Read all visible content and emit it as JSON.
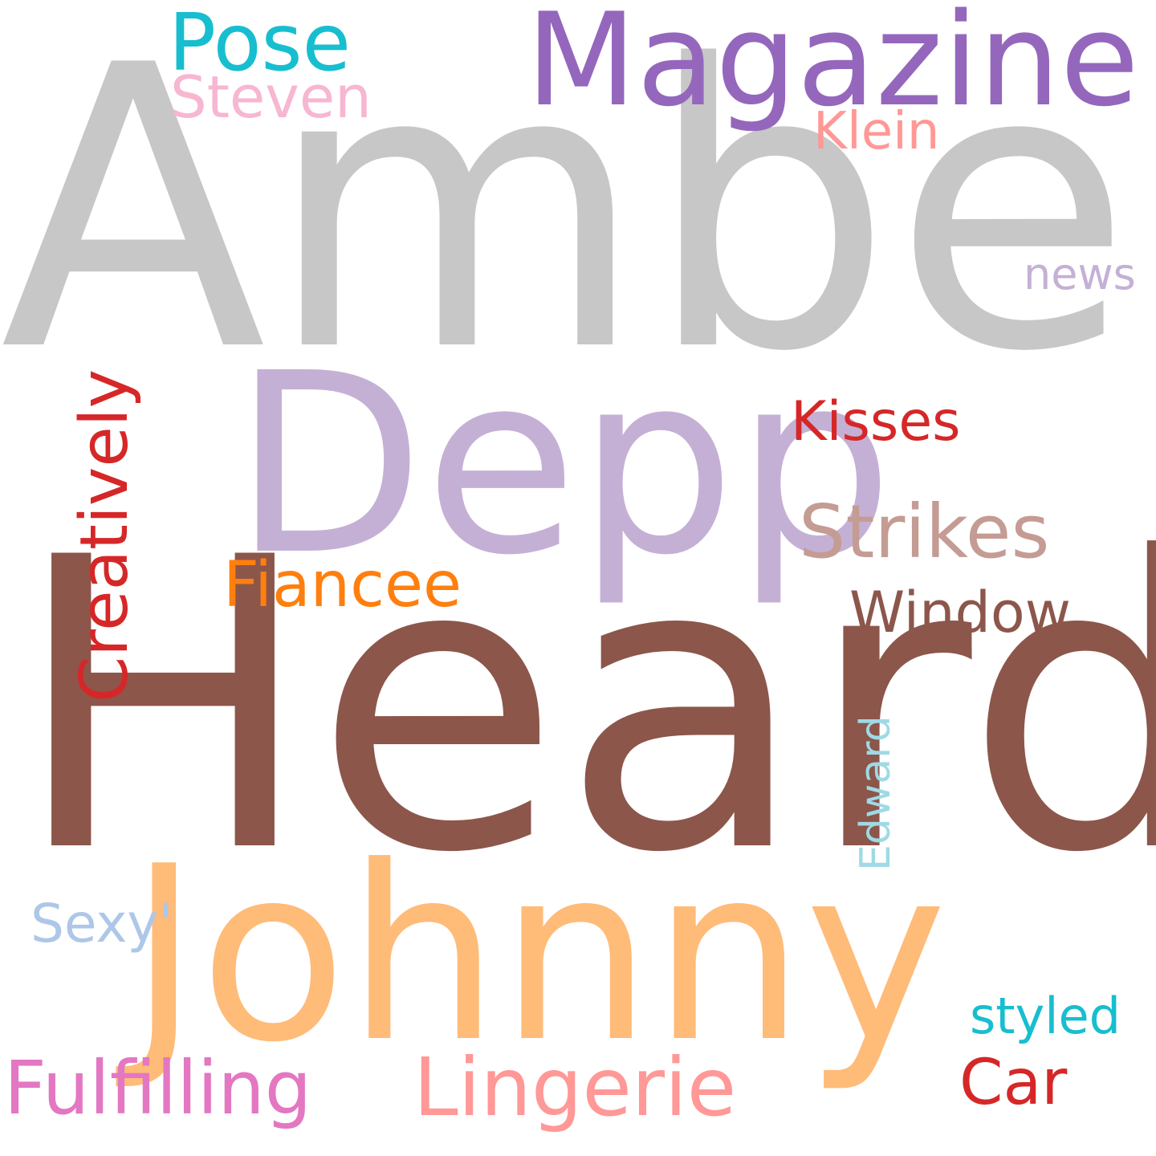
{
  "words": [
    {
      "id": "amber",
      "text": "Amber",
      "color": "#c7c7c7"
    },
    {
      "id": "heard",
      "text": "Heard",
      "color": "#8c564b"
    },
    {
      "id": "depp",
      "text": "Depp",
      "color": "#c5b0d5"
    },
    {
      "id": "johnny",
      "text": "Johnny",
      "color": "#ffbb78"
    },
    {
      "id": "magazine",
      "text": "Magazine",
      "color": "#9467bd"
    },
    {
      "id": "pose",
      "text": "Pose",
      "color": "#17becf"
    },
    {
      "id": "steven",
      "text": "Steven",
      "color": "#f7b6d2"
    },
    {
      "id": "klein",
      "text": "Klein",
      "color": "#ff9896"
    },
    {
      "id": "news",
      "text": "news",
      "color": "#c5b0d5"
    },
    {
      "id": "creatively",
      "text": "Creatively",
      "color": "#d62728"
    },
    {
      "id": "kisses",
      "text": "Kisses",
      "color": "#d62728"
    },
    {
      "id": "strikes",
      "text": "Strikes",
      "color": "#c49c94"
    },
    {
      "id": "fiancee",
      "text": "Fiancee",
      "color": "#ff7f0e"
    },
    {
      "id": "window",
      "text": "Window",
      "color": "#8c564b"
    },
    {
      "id": "edward",
      "text": "Edward",
      "color": "#9edae5"
    },
    {
      "id": "sexy",
      "text": "Sexy'",
      "color": "#aec7e8"
    },
    {
      "id": "styled",
      "text": "styled",
      "color": "#17becf"
    },
    {
      "id": "fulfilling",
      "text": "Fulfilling",
      "color": "#e377c2"
    },
    {
      "id": "lingerie",
      "text": "Lingerie",
      "color": "#ff9896"
    },
    {
      "id": "car",
      "text": "Car",
      "color": "#d62728"
    }
  ]
}
